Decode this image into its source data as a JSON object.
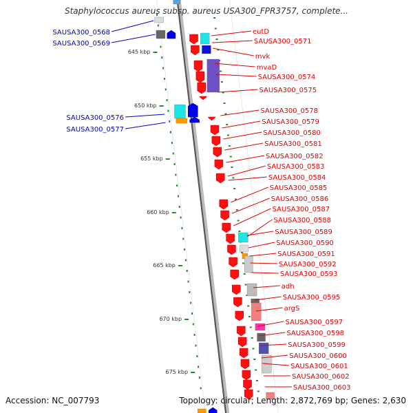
{
  "header": {
    "title": "Staphylococcus aureus subsp. aureus USA300_FPR3757, complete..."
  },
  "footer": {
    "accession": "Accession: NC_007793",
    "summary": "Topology: circular; Length: 2,872,769 bp; Genes: 2,630"
  },
  "scale": [
    "645 kbp",
    "650 kbp",
    "655 kbp",
    "660 kbp",
    "665 kbp",
    "670 kbp",
    "675 kbp"
  ],
  "colors": {
    "forward_label": "#0000cc",
    "reverse_label": "#e00000",
    "reverse_gene": "#ff1010",
    "forward_gene": "#0000ee",
    "backbone": "#999999",
    "tick": "#228b22"
  },
  "labels_left": [
    "SAUSA300_0568",
    "SAUSA300_0569",
    "SAUSA300_0576",
    "SAUSA300_0577"
  ],
  "labels_right": [
    "eutD",
    "SAUSA300_0571",
    "mvk",
    "mvaD",
    "SAUSA300_0574",
    "SAUSA300_0575",
    "SAUSA300_0578",
    "SAUSA300_0579",
    "SAUSA300_0580",
    "SAUSA300_0581",
    "SAUSA300_0582",
    "SAUSA300_0583",
    "SAUSA300_0584",
    "SAUSA300_0585",
    "SAUSA300_0586",
    "SAUSA300_0587",
    "SAUSA300_0588",
    "SAUSA300_0589",
    "SAUSA300_0590",
    "SAUSA300_0591",
    "SAUSA300_0592",
    "SAUSA300_0593",
    "adh",
    "SAUSA300_0595",
    "argS",
    "SAUSA300_0597",
    "SAUSA300_0598",
    "SAUSA300_0599",
    "SAUSA300_0600",
    "SAUSA300_0601",
    "SAUSA300_0602",
    "SAUSA300_0603"
  ]
}
